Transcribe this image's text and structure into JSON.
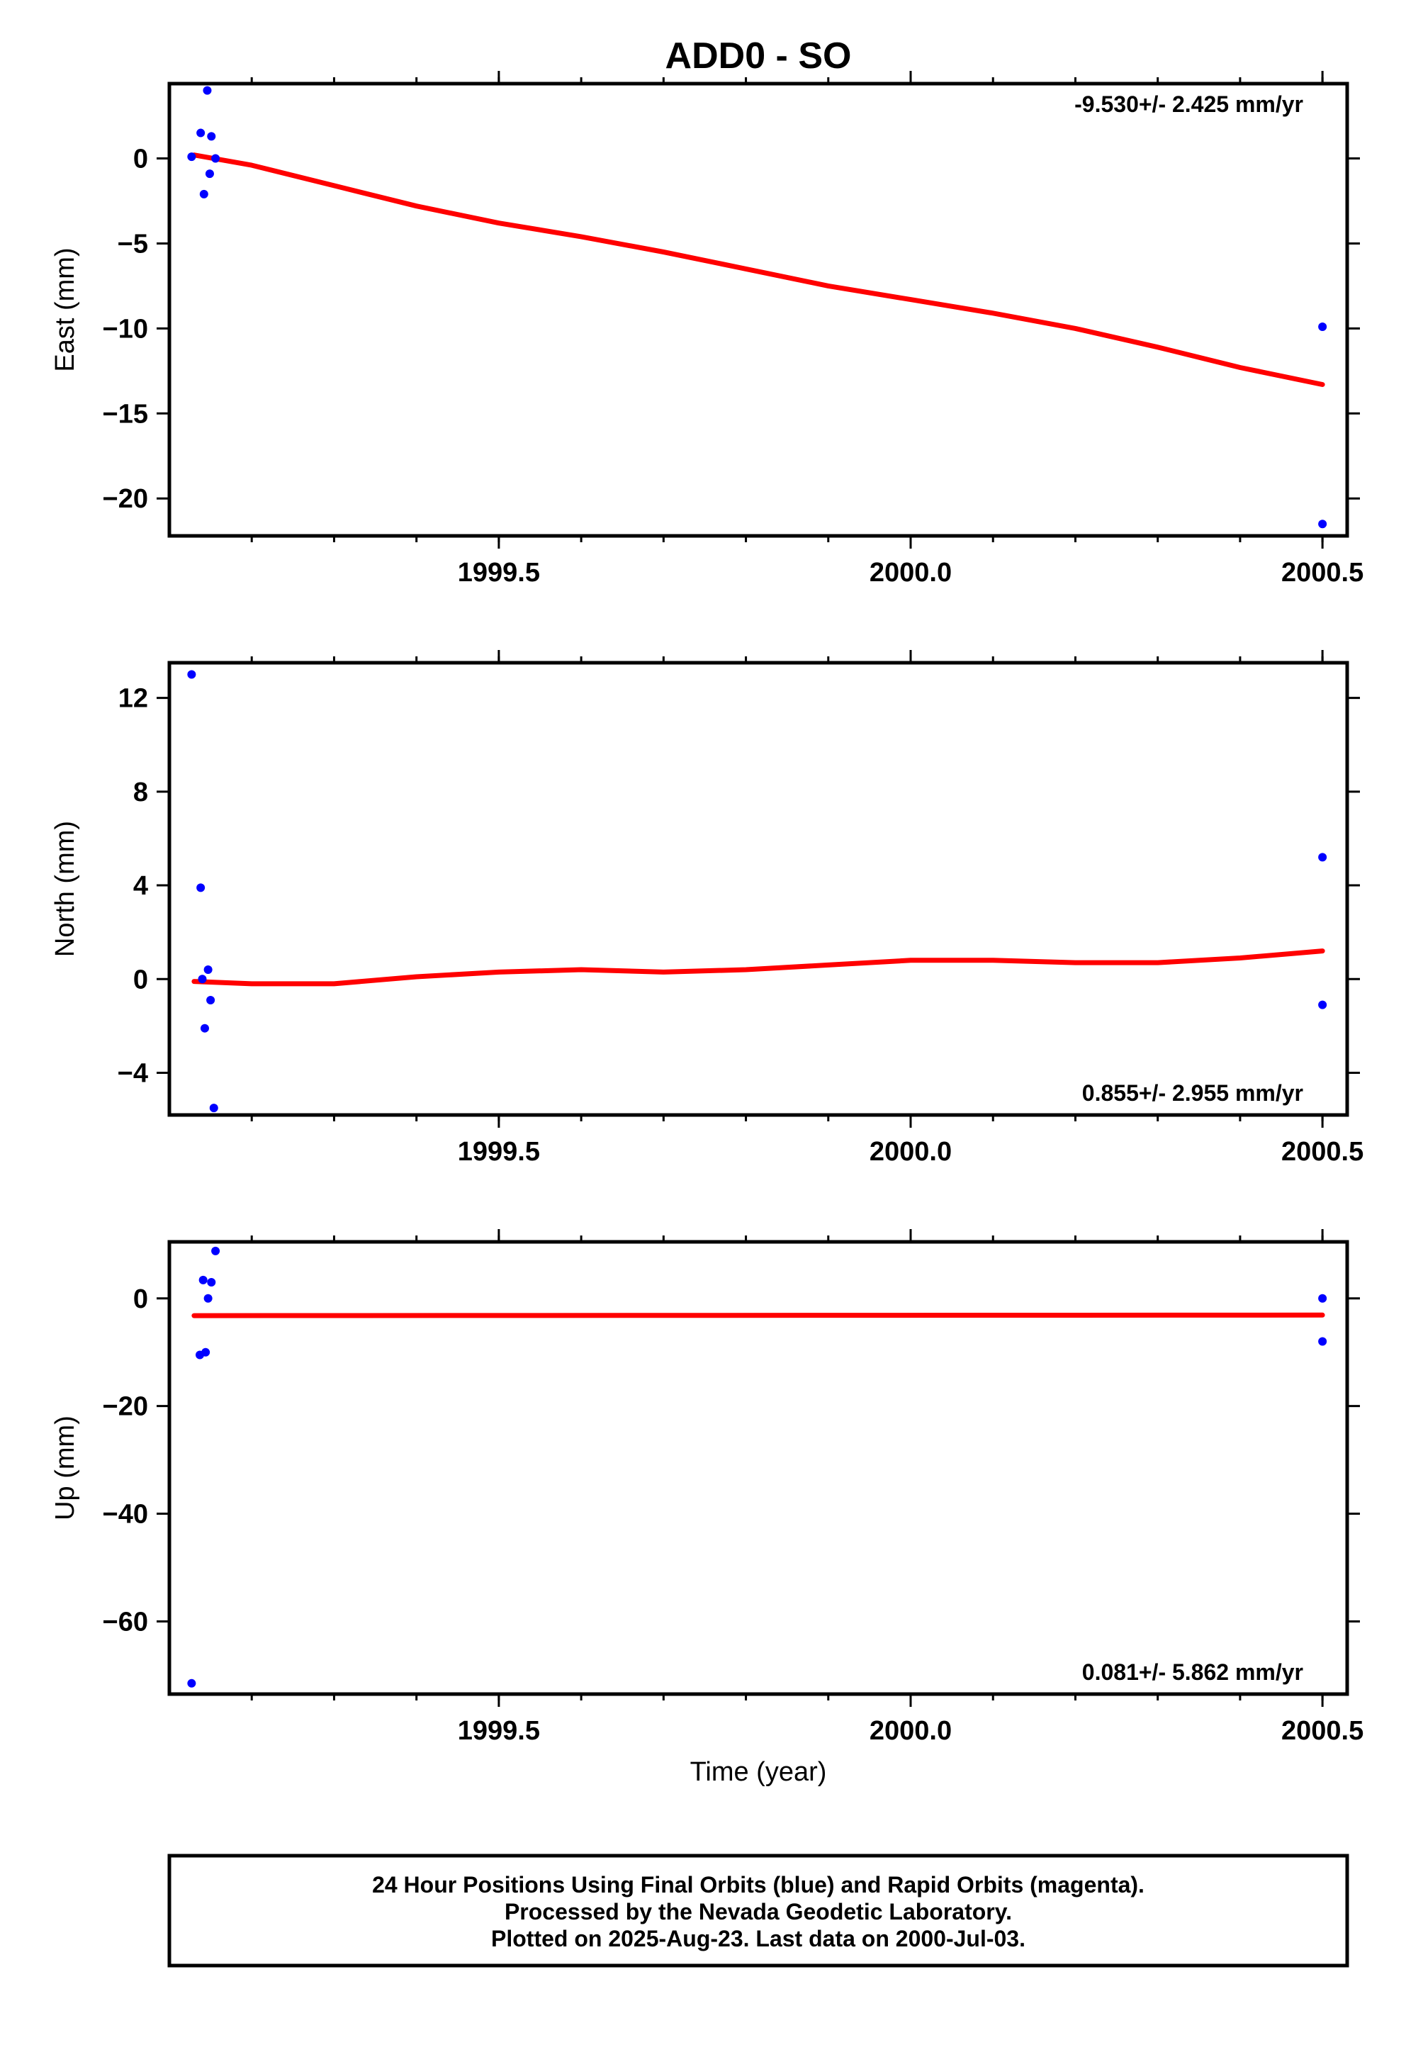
{
  "figure": {
    "title": "ADD0 - SO",
    "xlabel": "Time (year)",
    "footer": [
      "24 Hour Positions Using Final Orbits (blue) and Rapid Orbits (magenta).",
      "Processed by the Nevada Geodetic Laboratory.",
      "Plotted on 2025-Aug-23. Last data on 2000-Jul-03."
    ]
  },
  "colors": {
    "data_points": "#0000ff",
    "trend_line": "#ff0000",
    "frame": "#000000"
  },
  "chart_data": [
    {
      "type": "scatter",
      "ylabel": "East (mm)",
      "rate_label": "-9.530+/- 2.425 mm/yr",
      "rate_position": "top-right",
      "xlim": [
        1999.1,
        2000.53
      ],
      "ylim": [
        -22.2,
        4.4
      ],
      "xticks": [
        1999.5,
        2000.0,
        2000.5
      ],
      "xtick_labels": [
        "1999.5",
        "2000.0",
        "2000.5"
      ],
      "yticks": [
        0,
        -5,
        -10,
        -15,
        -20
      ],
      "ytick_labels": [
        "0",
        "−5",
        "−10",
        "−15",
        "−20"
      ],
      "series": [
        {
          "x": [
            1999.127,
            1999.138,
            1999.142,
            1999.146,
            1999.149,
            1999.151,
            1999.156,
            2000.5,
            2000.5
          ],
          "y": [
            0.1,
            1.5,
            -2.1,
            4.0,
            -0.9,
            1.3,
            0.0,
            -9.9,
            -21.5
          ]
        }
      ],
      "trend": {
        "x": [
          1999.13,
          1999.2,
          1999.3,
          1999.4,
          1999.5,
          1999.6,
          1999.7,
          1999.8,
          1999.9,
          2000.0,
          2000.1,
          2000.2,
          2000.3,
          2000.4,
          2000.5
        ],
        "y": [
          0.2,
          -0.4,
          -1.6,
          -2.8,
          -3.8,
          -4.6,
          -5.5,
          -6.5,
          -7.5,
          -8.3,
          -9.1,
          -10.0,
          -11.1,
          -12.3,
          -13.3
        ]
      }
    },
    {
      "type": "scatter",
      "ylabel": "North (mm)",
      "rate_label": "0.855+/- 2.955 mm/yr",
      "rate_position": "bottom-right",
      "xlim": [
        1999.1,
        2000.53
      ],
      "ylim": [
        -5.8,
        13.5
      ],
      "xticks": [
        1999.5,
        2000.0,
        2000.5
      ],
      "xtick_labels": [
        "1999.5",
        "2000.0",
        "2000.5"
      ],
      "yticks": [
        12,
        8,
        4,
        0,
        -4
      ],
      "ytick_labels": [
        "12",
        "8",
        "4",
        "0",
        "−4"
      ],
      "series": [
        {
          "x": [
            1999.127,
            1999.138,
            1999.14,
            1999.143,
            1999.147,
            1999.15,
            1999.154,
            2000.5,
            2000.5
          ],
          "y": [
            13.0,
            3.9,
            0.0,
            -2.1,
            0.4,
            -0.9,
            -5.5,
            5.2,
            -1.1
          ]
        }
      ],
      "trend": {
        "x": [
          1999.13,
          1999.2,
          1999.3,
          1999.4,
          1999.5,
          1999.6,
          1999.7,
          1999.8,
          1999.9,
          2000.0,
          2000.1,
          2000.2,
          2000.3,
          2000.4,
          2000.5
        ],
        "y": [
          -0.1,
          -0.2,
          -0.2,
          0.1,
          0.3,
          0.4,
          0.3,
          0.4,
          0.6,
          0.8,
          0.8,
          0.7,
          0.7,
          0.9,
          1.2
        ]
      }
    },
    {
      "type": "scatter",
      "ylabel": "Up (mm)",
      "rate_label": "0.081+/- 5.862 mm/yr",
      "rate_position": "bottom-right",
      "xlim": [
        1999.1,
        2000.53
      ],
      "ylim": [
        -73.5,
        10.5
      ],
      "xticks": [
        1999.5,
        2000.0,
        2000.5
      ],
      "xtick_labels": [
        "1999.5",
        "2000.0",
        "2000.5"
      ],
      "yticks": [
        0,
        -20,
        -40,
        -60
      ],
      "ytick_labels": [
        "0",
        "−20",
        "−40",
        "−60"
      ],
      "series": [
        {
          "x": [
            1999.127,
            1999.137,
            1999.141,
            1999.144,
            1999.147,
            1999.151,
            1999.156,
            2000.5,
            2000.5
          ],
          "y": [
            -71.5,
            -10.5,
            3.4,
            -10.0,
            0.0,
            3.0,
            8.8,
            0.0,
            -8.0
          ]
        }
      ],
      "trend": {
        "x": [
          1999.13,
          2000.5
        ],
        "y": [
          -3.2,
          -3.1
        ]
      }
    }
  ]
}
